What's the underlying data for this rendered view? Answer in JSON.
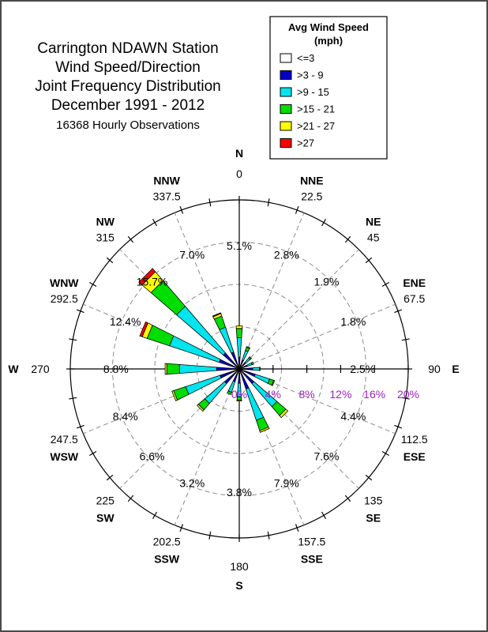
{
  "chart_data": {
    "type": "wind-rose",
    "title_lines": [
      "Carrington NDAWN Station",
      "Wind Speed/Direction",
      "Joint Frequency Distribution",
      "December 1991 - 2012"
    ],
    "observations": "16368 Hourly Observations",
    "legend": {
      "title_line1": "Avg Wind Speed",
      "title_line2": "(mph)",
      "items": [
        {
          "label": "<=3",
          "color": "#ffffff"
        },
        {
          "label": ">3 - 9",
          "color": "#0000c8"
        },
        {
          "label": ">9 - 15",
          "color": "#00e5ee"
        },
        {
          "label": ">15 - 21",
          "color": "#00dd00"
        },
        {
          "label": ">21 - 27",
          "color": "#ffff00"
        },
        {
          "label": ">27",
          "color": "#ff0000"
        }
      ]
    },
    "radial_axis": {
      "max_percent": 20,
      "tick_labels": [
        "0%",
        "4%",
        "8%",
        "12%",
        "16%",
        "20%"
      ],
      "tick_values": [
        0,
        4,
        8,
        12,
        16,
        20
      ]
    },
    "direction_labels": [
      {
        "deg": 0,
        "name": "N",
        "deg_label": "0"
      },
      {
        "deg": 22.5,
        "name": "NNE",
        "deg_label": "22.5"
      },
      {
        "deg": 45,
        "name": "NE",
        "deg_label": "45"
      },
      {
        "deg": 67.5,
        "name": "ENE",
        "deg_label": "67.5"
      },
      {
        "deg": 90,
        "name": "E",
        "deg_label": "90"
      },
      {
        "deg": 112.5,
        "name": "ESE",
        "deg_label": "112.5"
      },
      {
        "deg": 135,
        "name": "SE",
        "deg_label": "135"
      },
      {
        "deg": 157.5,
        "name": "SSE",
        "deg_label": "157.5"
      },
      {
        "deg": 180,
        "name": "S",
        "deg_label": "180"
      },
      {
        "deg": 202.5,
        "name": "SSW",
        "deg_label": "202.5"
      },
      {
        "deg": 225,
        "name": "SW",
        "deg_label": "225"
      },
      {
        "deg": 247.5,
        "name": "WSW",
        "deg_label": "247.5"
      },
      {
        "deg": 270,
        "name": "W",
        "deg_label": "270"
      },
      {
        "deg": 292.5,
        "name": "WNW",
        "deg_label": "292.5"
      },
      {
        "deg": 315,
        "name": "NW",
        "deg_label": "315"
      },
      {
        "deg": 337.5,
        "name": "NNW",
        "deg_label": "337.5"
      }
    ],
    "sector_percent_labels": [
      {
        "deg": 0,
        "label": "5.1%"
      },
      {
        "deg": 22.5,
        "label": "2.8%"
      },
      {
        "deg": 45,
        "label": "1.9%"
      },
      {
        "deg": 67.5,
        "label": "1.8%"
      },
      {
        "deg": 90,
        "label": "2.5%"
      },
      {
        "deg": 112.5,
        "label": "4.4%"
      },
      {
        "deg": 135,
        "label": "7.6%"
      },
      {
        "deg": 157.5,
        "label": "7.9%"
      },
      {
        "deg": 180,
        "label": "3.8%"
      },
      {
        "deg": 202.5,
        "label": "3.2%"
      },
      {
        "deg": 225,
        "label": "6.6%"
      },
      {
        "deg": 247.5,
        "label": "8.4%"
      },
      {
        "deg": 270,
        "label": "8.8%"
      },
      {
        "deg": 292.5,
        "label": "12.4%"
      },
      {
        "deg": 315,
        "label": "15.7%"
      },
      {
        "deg": 337.5,
        "label": "7.0%"
      }
    ],
    "petals": [
      {
        "deg": 0,
        "segments": [
          0.2,
          1.2,
          2.3,
          1.1,
          0.3,
          0.0
        ]
      },
      {
        "deg": 22.5,
        "segments": [
          0.2,
          0.9,
          1.2,
          0.4,
          0.1,
          0.0
        ]
      },
      {
        "deg": 45,
        "segments": [
          0.2,
          0.8,
          0.7,
          0.2,
          0.0,
          0.0
        ]
      },
      {
        "deg": 67.5,
        "segments": [
          0.2,
          0.8,
          0.6,
          0.2,
          0.0,
          0.0
        ]
      },
      {
        "deg": 90,
        "segments": [
          0.2,
          1.4,
          0.8,
          0.1,
          0.0,
          0.0
        ]
      },
      {
        "deg": 112.5,
        "segments": [
          0.2,
          1.8,
          1.8,
          0.5,
          0.1,
          0.0
        ]
      },
      {
        "deg": 135,
        "segments": [
          0.2,
          2.1,
          3.6,
          1.4,
          0.3,
          0.0
        ]
      },
      {
        "deg": 157.5,
        "segments": [
          0.2,
          2.3,
          3.9,
          1.3,
          0.2,
          0.0
        ]
      },
      {
        "deg": 180,
        "segments": [
          0.2,
          1.5,
          1.6,
          0.4,
          0.1,
          0.0
        ]
      },
      {
        "deg": 202.5,
        "segments": [
          0.2,
          1.4,
          1.3,
          0.3,
          0.0,
          0.0
        ]
      },
      {
        "deg": 225,
        "segments": [
          0.2,
          2.1,
          3.1,
          1.0,
          0.2,
          0.0
        ]
      },
      {
        "deg": 247.5,
        "segments": [
          0.2,
          2.2,
          4.3,
          1.5,
          0.2,
          0.0
        ]
      },
      {
        "deg": 270,
        "segments": [
          0.2,
          2.5,
          4.4,
          1.5,
          0.2,
          0.0
        ]
      },
      {
        "deg": 292.5,
        "segments": [
          0.2,
          2.3,
          6.2,
          2.8,
          0.6,
          0.3
        ]
      },
      {
        "deg": 315,
        "segments": [
          0.2,
          2.3,
          7.3,
          4.0,
          1.4,
          0.5
        ]
      },
      {
        "deg": 337.5,
        "segments": [
          0.2,
          1.9,
          3.1,
          1.4,
          0.3,
          0.1
        ]
      }
    ],
    "grid": true
  }
}
